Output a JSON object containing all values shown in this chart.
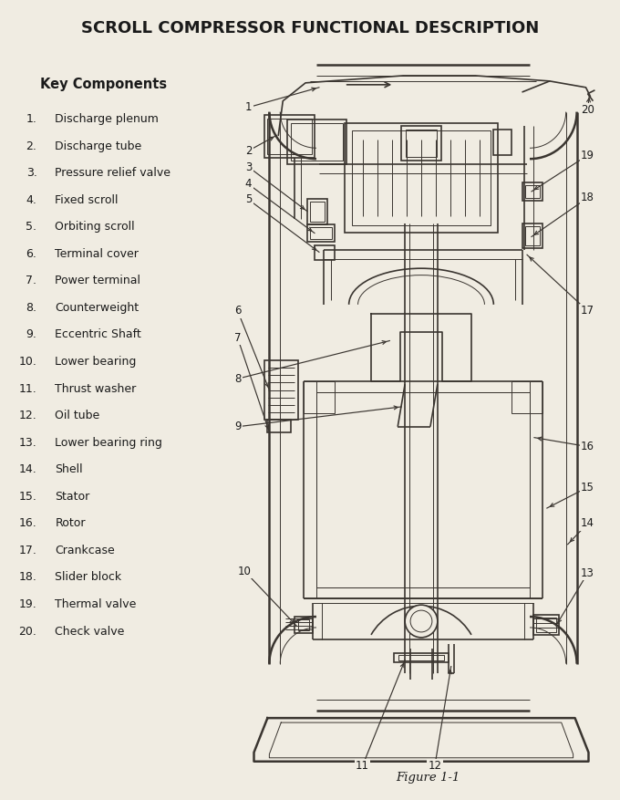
{
  "title": "SCROLL COMPRESSOR FUNCTIONAL DESCRIPTION",
  "figure_label": "Figure 1-1",
  "key_components_header": "Key Components",
  "components": [
    "Discharge plenum",
    "Discharge tube",
    "Pressure relief valve",
    "Fixed scroll",
    "Orbiting scroll",
    "Terminal cover",
    "Power terminal",
    "Counterweight",
    "Eccentric Shaft",
    "Lower bearing",
    "Thrust washer",
    "Oil tube",
    "Lower bearing ring",
    "Shell",
    "Stator",
    "Rotor",
    "Crankcase",
    "Slider block",
    "Thermal valve",
    "Check valve"
  ],
  "bg_color": "#f0ece2",
  "text_color": "#1a1a1a",
  "diagram_color": "#3a3530"
}
